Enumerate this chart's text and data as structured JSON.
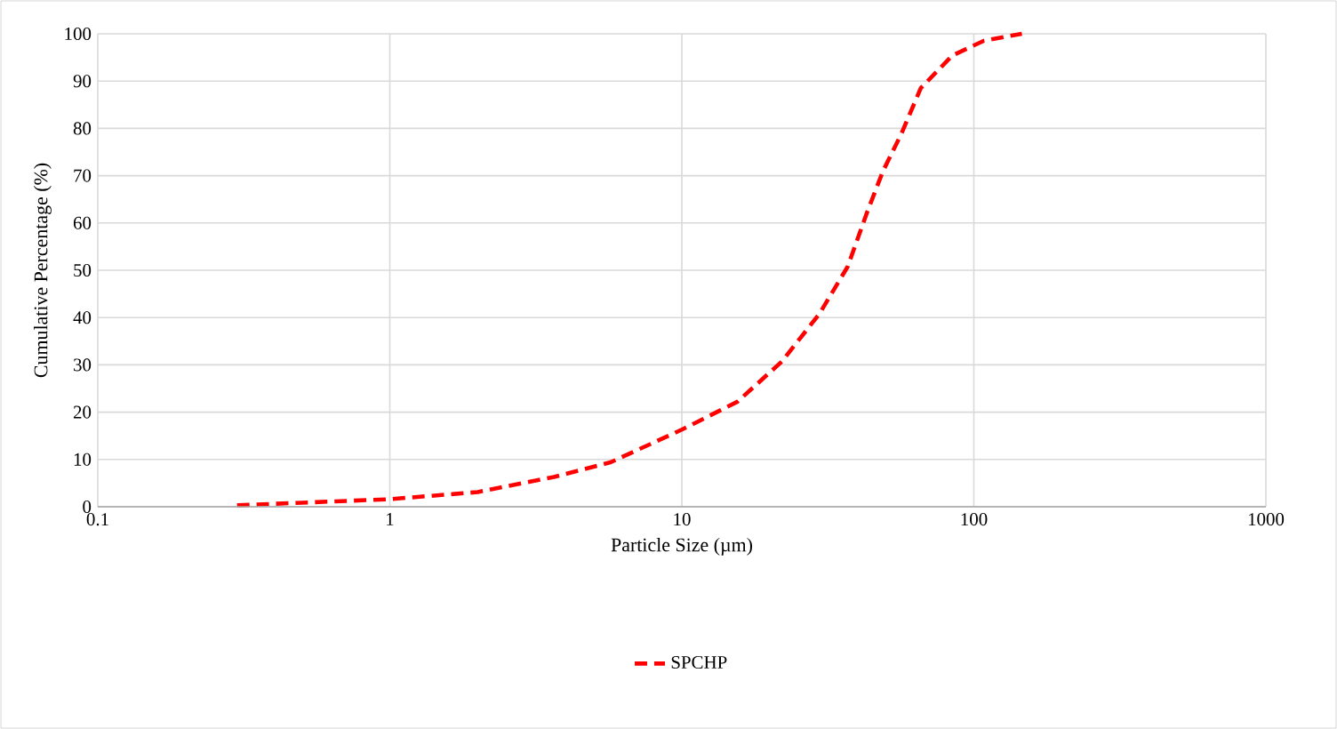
{
  "chart_data": {
    "type": "line",
    "xlabel": "Particle Size (µm)",
    "ylabel": "Cumulative Percentage (%)",
    "log": "x",
    "xlim": [
      0.1,
      1000
    ],
    "xticks": [
      0.1,
      1,
      10,
      100,
      1000
    ],
    "ylim": [
      0,
      100
    ],
    "yticks": [
      0,
      10,
      20,
      30,
      40,
      50,
      60,
      70,
      80,
      90,
      100
    ],
    "grid": true,
    "legend": "bottom",
    "line_style": "dashed",
    "marker": "none",
    "series": [
      {
        "name": "SPCHP",
        "color": "#ff0000",
        "x": [
          0.3,
          1,
          2,
          3.65,
          5.7,
          10,
          15.5,
          22,
          29.6,
          37,
          43,
          48.8,
          56.6,
          65.8,
          84.4,
          108,
          146
        ],
        "values": [
          0.3,
          1.6,
          3.1,
          6.3,
          9.4,
          16.3,
          22.2,
          30.7,
          40.8,
          50.8,
          62.1,
          70.9,
          79,
          88.5,
          95.4,
          98.5,
          100
        ]
      }
    ]
  }
}
